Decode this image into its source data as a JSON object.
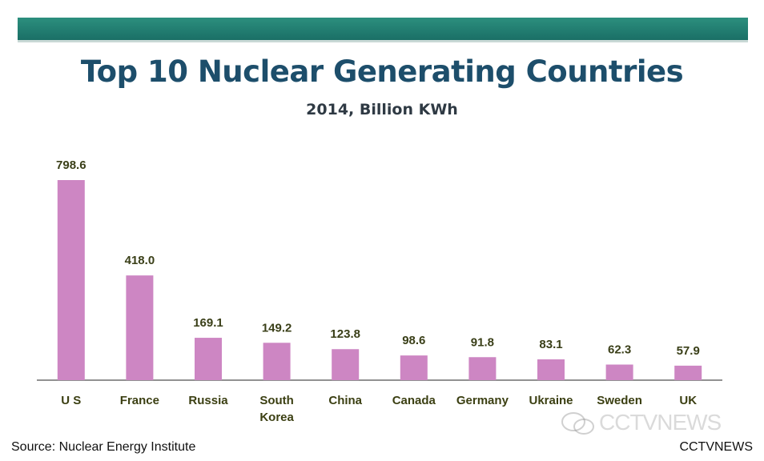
{
  "header": {
    "title": "Top 10 Nuclear Generating Countries",
    "subtitle": "2014, Billion KWh"
  },
  "footer": {
    "source": "Source: Nuclear Energy Institute",
    "credit": "CCTVNEWS",
    "watermark": "CCTVNEWS"
  },
  "colors": {
    "bar": "#cd86c3",
    "title": "#1d4e6b",
    "band": "#2c8f7e"
  },
  "chart_data": {
    "type": "bar",
    "title": "Top 10 Nuclear Generating Countries",
    "subtitle": "2014, Billion KWh",
    "categories": [
      "U S",
      "France",
      "Russia",
      "South Korea",
      "China",
      "Canada",
      "Germany",
      "Ukraine",
      "Sweden",
      "UK"
    ],
    "values": [
      798.6,
      418.0,
      169.1,
      149.2,
      123.8,
      98.6,
      91.8,
      83.1,
      62.3,
      57.9
    ],
    "value_labels": [
      "798.6",
      "418.0",
      "169.1",
      "149.2",
      "123.8",
      "98.6",
      "91.8",
      "83.1",
      "62.3",
      "57.9"
    ],
    "xlabel": "",
    "ylabel": "",
    "ylim": [
      0,
      800
    ],
    "grid": false,
    "legend": "none"
  }
}
